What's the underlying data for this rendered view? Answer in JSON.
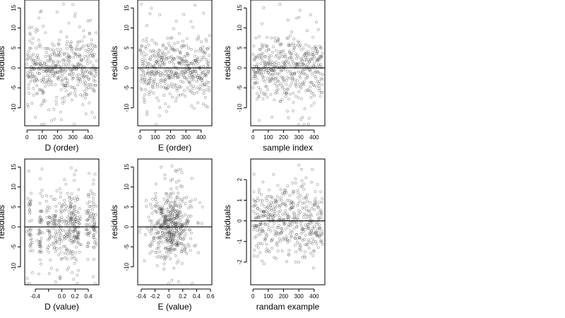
{
  "chart_data": [
    {
      "type": "scatter",
      "xlabel": "D (order)",
      "ylabel": "residuals",
      "xlim": [
        -15,
        470
      ],
      "ylim": [
        -14.5,
        17
      ],
      "xticks": [
        0,
        100,
        200,
        300,
        400
      ],
      "yticks": [
        -10,
        -5,
        0,
        5,
        10,
        15
      ],
      "hline": 0,
      "n_points": 460,
      "shape": "uniform",
      "spread": 4.8
    },
    {
      "type": "scatter",
      "xlabel": "E (order)",
      "ylabel": "residuals",
      "xlim": [
        -15,
        470
      ],
      "ylim": [
        -14.5,
        17
      ],
      "xticks": [
        0,
        100,
        200,
        300,
        400
      ],
      "yticks": [
        -10,
        -5,
        0,
        5,
        10,
        15
      ],
      "hline": 0,
      "n_points": 460,
      "shape": "uniform",
      "spread": 4.8
    },
    {
      "type": "scatter",
      "xlabel": "sample index",
      "ylabel": "residuals",
      "xlim": [
        -15,
        470
      ],
      "ylim": [
        -14.5,
        17
      ],
      "xticks": [
        0,
        100,
        200,
        300,
        400
      ],
      "yticks": [
        -10,
        -5,
        0,
        5,
        10,
        15
      ],
      "hline": 0,
      "n_points": 460,
      "shape": "uniform",
      "spread": 4.8
    },
    {
      "type": "scatter",
      "xlabel": "D (value)",
      "ylabel": "residuals",
      "xlim": [
        -0.56,
        0.56
      ],
      "ylim": [
        -14.5,
        17
      ],
      "xticks": [
        -0.4,
        -0.2,
        0.0,
        0.2,
        0.4
      ],
      "xtick_labels": [
        "-0.4",
        "",
        "0.0",
        "0.2",
        "0.4"
      ],
      "yticks": [
        -10,
        -5,
        0,
        5,
        10,
        15
      ],
      "hline": 0,
      "n_points": 460,
      "shape": "clustered",
      "spread": 4.8
    },
    {
      "type": "scatter",
      "xlabel": "E (value)",
      "ylabel": "residuals",
      "xlim": [
        -0.45,
        0.62
      ],
      "ylim": [
        -14.5,
        17
      ],
      "xticks": [
        -0.4,
        -0.2,
        0.0,
        0.2,
        0.4,
        0.6
      ],
      "yticks": [
        -10,
        -5,
        0,
        5,
        10,
        15
      ],
      "hline": 0,
      "n_points": 460,
      "shape": "centered",
      "spread": 4.8
    },
    {
      "type": "scatter",
      "xlabel": "randam example",
      "ylabel": "residuals",
      "xlim": [
        -15,
        470
      ],
      "ylim": [
        -3.1,
        3.0
      ],
      "xticks": [
        0,
        100,
        200,
        300,
        400
      ],
      "yticks": [
        -2,
        -1,
        0,
        1,
        2
      ],
      "hline": 0,
      "n_points": 460,
      "shape": "uniform",
      "spread": 1.0
    }
  ]
}
